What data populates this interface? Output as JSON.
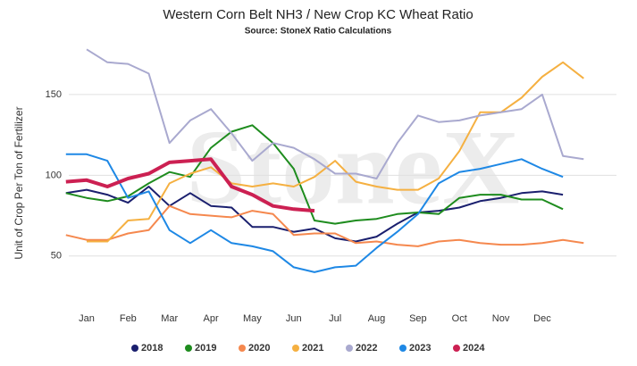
{
  "chart_data": {
    "type": "line",
    "title": "Western Corn Belt NH3 / New Crop KC Wheat Ratio",
    "subtitle": "Source: StoneX Ratio Calculations",
    "watermark": "StoneX",
    "y_label": "Unit of Crop Per Ton of Fertilizer",
    "categories": [
      null,
      "Jan",
      null,
      "Feb",
      null,
      "Mar",
      null,
      "Apr",
      null,
      "May",
      null,
      "Jun",
      null,
      "Jul",
      null,
      "Aug",
      null,
      "Sep",
      null,
      "Oct",
      null,
      "Nov",
      null,
      "Dec",
      null,
      null
    ],
    "ylim": [
      25,
      200
    ],
    "yticks": [
      50,
      100,
      150
    ],
    "grid": true,
    "legend": "bottom",
    "series": [
      {
        "name": "2018",
        "color": "#1a1f6e",
        "values": [
          89,
          91,
          88,
          83,
          93,
          81,
          89,
          81,
          80,
          68,
          68,
          65,
          67,
          61,
          59,
          62,
          70,
          77,
          78,
          80,
          84,
          86,
          89,
          90,
          88,
          null
        ]
      },
      {
        "name": "2019",
        "color": "#1e8c1e",
        "values": [
          89,
          86,
          84,
          87,
          95,
          102,
          99,
          117,
          127,
          131,
          120,
          104,
          72,
          70,
          72,
          73,
          76,
          77,
          76,
          86,
          88,
          88,
          85,
          85,
          79,
          null
        ]
      },
      {
        "name": "2020",
        "color": "#f5884e",
        "values": [
          63,
          60,
          60,
          64,
          66,
          81,
          76,
          75,
          74,
          78,
          76,
          63,
          64,
          64,
          58,
          59,
          57,
          56,
          59,
          60,
          58,
          57,
          57,
          58,
          60,
          58
        ]
      },
      {
        "name": "2021",
        "color": "#f5b041",
        "values": [
          null,
          59,
          59,
          72,
          73,
          95,
          101,
          105,
          95,
          93,
          95,
          93,
          99,
          109,
          96,
          93,
          91,
          91,
          98,
          115,
          139,
          139,
          148,
          161,
          170,
          160
        ]
      },
      {
        "name": "2022",
        "color": "#a9a9cf",
        "values": [
          null,
          178,
          170,
          169,
          163,
          120,
          134,
          141,
          126,
          109,
          120,
          117,
          110,
          101,
          101,
          98,
          120,
          137,
          133,
          134,
          137,
          139,
          141,
          150,
          112,
          110
        ]
      },
      {
        "name": "2023",
        "color": "#1e88e5",
        "values": [
          113,
          113,
          109,
          86,
          90,
          66,
          58,
          66,
          58,
          56,
          53,
          43,
          40,
          43,
          44,
          55,
          65,
          76,
          95,
          102,
          104,
          107,
          110,
          104,
          99,
          null
        ]
      },
      {
        "name": "2024",
        "color": "#cc2052",
        "values": [
          96,
          97,
          93,
          98,
          101,
          108,
          109,
          110,
          93,
          88,
          81,
          79,
          78,
          null,
          null,
          null,
          null,
          null,
          null,
          null,
          null,
          null,
          null,
          null,
          null,
          null
        ]
      }
    ]
  }
}
